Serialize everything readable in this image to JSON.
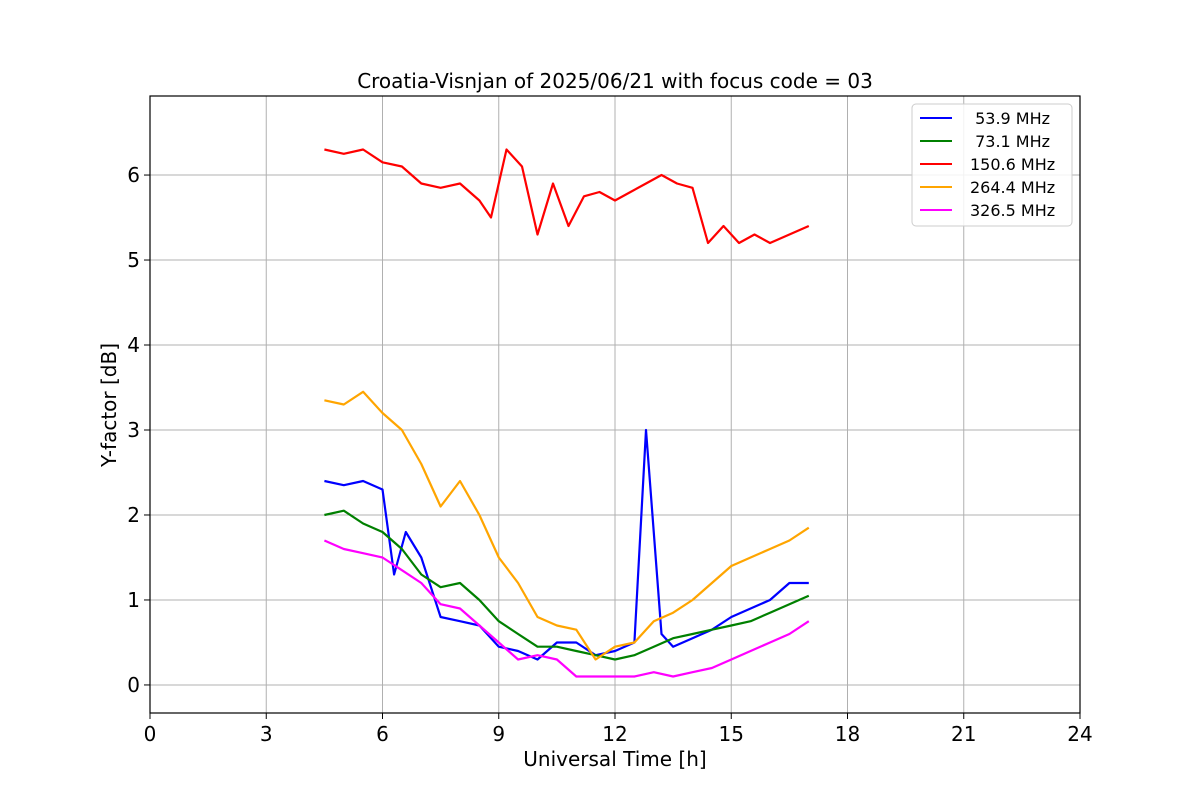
{
  "chart_data": {
    "type": "line",
    "title": "Croatia-Visnjan of 2025/06/21 with focus code = 03",
    "xlabel": "Universal Time [h]",
    "ylabel": "Y-factor [dB]",
    "xlim": [
      0,
      24
    ],
    "ylim": [
      -0.33,
      6.93
    ],
    "xticks": [
      0,
      3,
      6,
      9,
      12,
      15,
      18,
      21,
      24
    ],
    "yticks": [
      0,
      1,
      2,
      3,
      4,
      5,
      6
    ],
    "grid": true,
    "legend_position": "top-right",
    "series": [
      {
        "name": " 53.9 MHz",
        "color": "#0000ff",
        "x": [
          4.5,
          5.0,
          5.5,
          6.0,
          6.3,
          6.6,
          7.0,
          7.5,
          8.0,
          8.5,
          9.0,
          9.5,
          10.0,
          10.5,
          11.0,
          11.5,
          12.0,
          12.5,
          12.8,
          13.2,
          13.5,
          14.0,
          14.5,
          15.0,
          15.5,
          16.0,
          16.5,
          17.0
        ],
        "values": [
          2.4,
          2.35,
          2.4,
          2.3,
          1.3,
          1.8,
          1.5,
          0.8,
          0.75,
          0.7,
          0.45,
          0.4,
          0.3,
          0.5,
          0.5,
          0.35,
          0.4,
          0.5,
          3.0,
          0.6,
          0.45,
          0.55,
          0.65,
          0.8,
          0.9,
          1.0,
          1.2,
          1.2
        ]
      },
      {
        "name": " 73.1 MHz",
        "color": "#008000",
        "x": [
          4.5,
          5.0,
          5.5,
          6.0,
          6.5,
          7.0,
          7.5,
          8.0,
          8.5,
          9.0,
          9.5,
          10.0,
          10.5,
          11.0,
          11.5,
          12.0,
          12.5,
          13.0,
          13.5,
          14.0,
          14.5,
          15.0,
          15.5,
          16.0,
          16.5,
          17.0
        ],
        "values": [
          2.0,
          2.05,
          1.9,
          1.8,
          1.6,
          1.3,
          1.15,
          1.2,
          1.0,
          0.75,
          0.6,
          0.45,
          0.45,
          0.4,
          0.35,
          0.3,
          0.35,
          0.45,
          0.55,
          0.6,
          0.65,
          0.7,
          0.75,
          0.85,
          0.95,
          1.05
        ]
      },
      {
        "name": "150.6 MHz",
        "color": "#ff0000",
        "x": [
          4.5,
          5.0,
          5.5,
          6.0,
          6.5,
          7.0,
          7.5,
          8.0,
          8.5,
          8.8,
          9.2,
          9.6,
          10.0,
          10.4,
          10.8,
          11.2,
          11.6,
          12.0,
          12.4,
          12.8,
          13.2,
          13.6,
          14.0,
          14.4,
          14.8,
          15.2,
          15.6,
          16.0,
          16.5,
          17.0
        ],
        "values": [
          6.3,
          6.25,
          6.3,
          6.15,
          6.1,
          5.9,
          5.85,
          5.9,
          5.7,
          5.5,
          6.3,
          6.1,
          5.3,
          5.9,
          5.4,
          5.75,
          5.8,
          5.7,
          5.8,
          5.9,
          6.0,
          5.9,
          5.85,
          5.2,
          5.4,
          5.2,
          5.3,
          5.2,
          5.3,
          5.4
        ]
      },
      {
        "name": "264.4 MHz",
        "color": "#ffa500",
        "x": [
          4.5,
          5.0,
          5.5,
          6.0,
          6.5,
          7.0,
          7.5,
          8.0,
          8.5,
          9.0,
          9.5,
          10.0,
          10.5,
          11.0,
          11.5,
          12.0,
          12.5,
          13.0,
          13.5,
          14.0,
          14.5,
          15.0,
          15.5,
          16.0,
          16.5,
          17.0
        ],
        "values": [
          3.35,
          3.3,
          3.45,
          3.2,
          3.0,
          2.6,
          2.1,
          2.4,
          2.0,
          1.5,
          1.2,
          0.8,
          0.7,
          0.65,
          0.3,
          0.45,
          0.5,
          0.75,
          0.85,
          1.0,
          1.2,
          1.4,
          1.5,
          1.6,
          1.7,
          1.85
        ]
      },
      {
        "name": "326.5 MHz",
        "color": "#ff00ff",
        "x": [
          4.5,
          5.0,
          5.5,
          6.0,
          6.5,
          7.0,
          7.5,
          8.0,
          8.5,
          9.0,
          9.5,
          10.0,
          10.5,
          11.0,
          11.5,
          12.0,
          12.5,
          13.0,
          13.5,
          14.0,
          14.5,
          15.0,
          15.5,
          16.0,
          16.5,
          17.0
        ],
        "values": [
          1.7,
          1.6,
          1.55,
          1.5,
          1.35,
          1.2,
          0.95,
          0.9,
          0.7,
          0.5,
          0.3,
          0.35,
          0.3,
          0.1,
          0.1,
          0.1,
          0.1,
          0.15,
          0.1,
          0.15,
          0.2,
          0.3,
          0.4,
          0.5,
          0.6,
          0.75
        ]
      }
    ]
  }
}
